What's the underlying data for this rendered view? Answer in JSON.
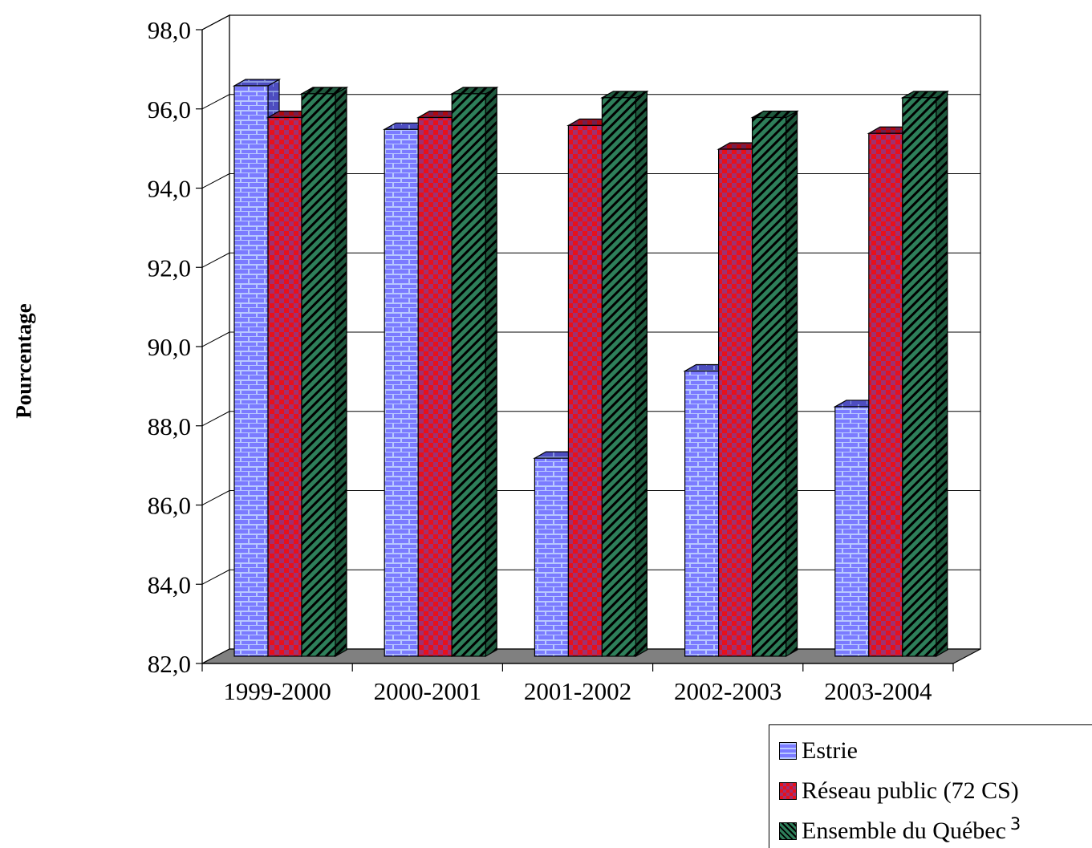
{
  "chart_data": {
    "type": "bar",
    "ylabel": "Pourcentage",
    "ylim": [
      82.0,
      98.0
    ],
    "yticks": [
      "82,0",
      "84,0",
      "86,0",
      "88,0",
      "90,0",
      "92,0",
      "94,0",
      "96,0",
      "98,0"
    ],
    "categories": [
      "1999-2000",
      "2000-2001",
      "2001-2002",
      "2002-2003",
      "2003-2004"
    ],
    "series": [
      {
        "name": "Estrie",
        "values": [
          96.4,
          95.3,
          87.0,
          89.2,
          88.3
        ],
        "color": "#7b7bff",
        "pattern": "brick"
      },
      {
        "name": "Réseau public  (72 CS)",
        "values": [
          95.6,
          95.6,
          95.4,
          94.8,
          95.2
        ],
        "color": "#e8101a",
        "pattern": "checker"
      },
      {
        "name": "Ensemble du Québec",
        "superscript": "3",
        "values": [
          96.2,
          96.2,
          96.1,
          95.6,
          96.1
        ],
        "color": "#2e7f5a",
        "pattern": "diagonal"
      }
    ],
    "grid": true,
    "legend_position": "bottom-right",
    "style": "3d-clustered"
  }
}
